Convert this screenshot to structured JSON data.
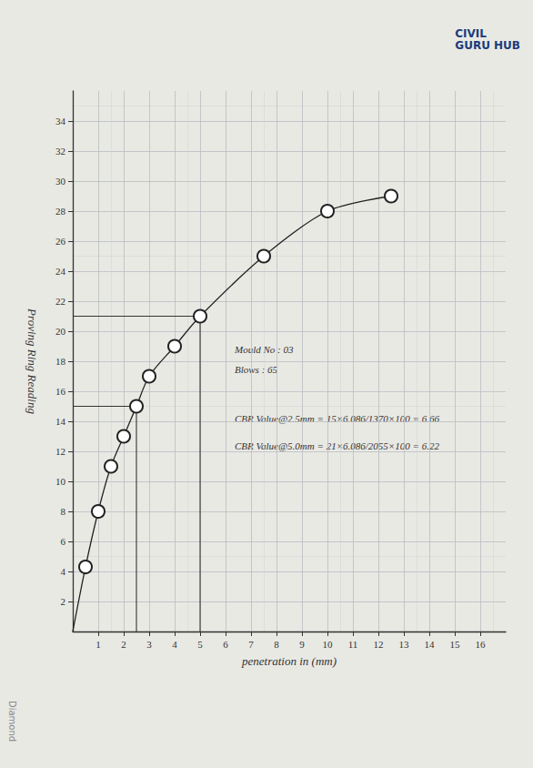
{
  "chart_data": {
    "type": "line",
    "x_label": "penetration in (mm)",
    "y_label": "Proving Ring Reading",
    "x": [
      0,
      0.5,
      1.0,
      1.5,
      2.0,
      2.5,
      3.0,
      4.0,
      5.0,
      7.5,
      10.0,
      12.5
    ],
    "values": [
      0,
      4.3,
      8,
      11,
      13,
      15,
      17,
      19,
      21,
      25,
      28,
      29
    ],
    "color": "#222222",
    "marker": "circle",
    "line_style": "solid",
    "xlim": [
      0,
      17
    ],
    "xticks": [
      1,
      2,
      3,
      4,
      5,
      6,
      7,
      8,
      9,
      10,
      11,
      12,
      13,
      14,
      15,
      16
    ],
    "ylim": [
      0,
      36
    ],
    "yticks": [
      2,
      4,
      6,
      8,
      10,
      12,
      14,
      16,
      18,
      20,
      22,
      24,
      26,
      28,
      30,
      32,
      34
    ],
    "grid": true,
    "guides": [
      {
        "x": 2.5,
        "y": 15
      },
      {
        "x": 5,
        "y": 21
      }
    ],
    "annotations": [
      "Mould No : 03",
      "Blows : 65",
      "CBR Value@2.5mm = 15×6.086/1370×100 = 6.66",
      "CBR Value@5.0mm = 21×6.086/2055×100 = 6.22"
    ],
    "watermark": [
      "CIVIL",
      "GURU HUB"
    ],
    "paper_brand": "Diamond"
  }
}
